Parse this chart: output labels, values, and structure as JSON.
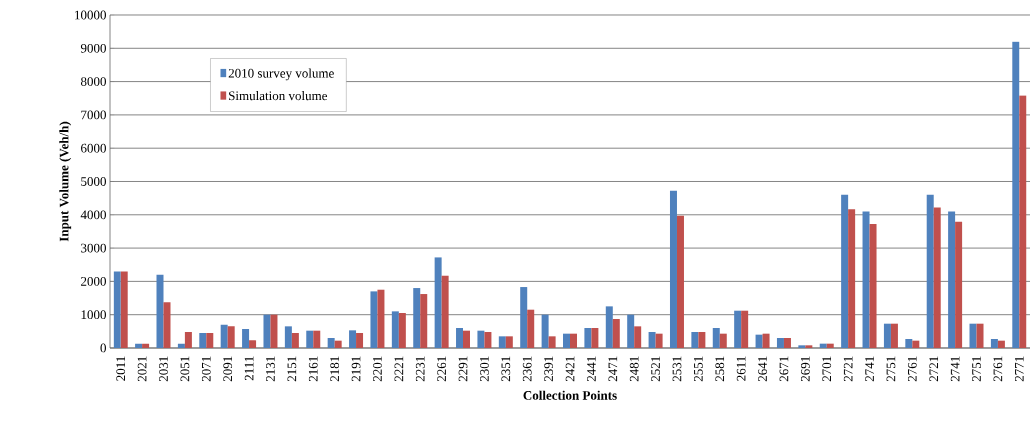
{
  "chart_data": {
    "type": "bar",
    "xlabel": "Collection Points",
    "ylabel": "Input Volume (Veh/h)",
    "categories": [
      "2011",
      "2021",
      "2031",
      "2051",
      "2071",
      "2091",
      "2111",
      "2131",
      "2151",
      "2161",
      "2181",
      "2191",
      "2201",
      "2221",
      "2231",
      "2261",
      "2291",
      "2301",
      "2351",
      "2361",
      "2391",
      "2421",
      "2441",
      "2471",
      "2481",
      "2521",
      "2531",
      "2551",
      "2581",
      "2611",
      "2641",
      "2671",
      "2691",
      "2701",
      "2721",
      "2741",
      "2751",
      "2761",
      "2721",
      "2741",
      "2751",
      "2761",
      "2771"
    ],
    "series": [
      {
        "name": "2010 survey volume",
        "color": "#4f81bd",
        "values": [
          2300,
          130,
          2200,
          130,
          450,
          700,
          570,
          1000,
          650,
          520,
          300,
          530,
          1700,
          1100,
          1800,
          2720,
          600,
          520,
          350,
          1830,
          1000,
          430,
          600,
          1250,
          1000,
          480,
          4720,
          480,
          600,
          1120,
          400,
          300,
          80,
          130,
          4600,
          4100,
          730,
          270,
          4600,
          4100,
          730,
          270,
          9200
        ]
      },
      {
        "name": "Simulation volume",
        "color": "#c0504d",
        "values": [
          2300,
          130,
          1370,
          480,
          450,
          650,
          230,
          1000,
          450,
          520,
          220,
          450,
          1750,
          1050,
          1620,
          2170,
          520,
          480,
          350,
          1150,
          350,
          430,
          600,
          870,
          650,
          430,
          3970,
          480,
          430,
          1120,
          430,
          300,
          80,
          130,
          4170,
          3720,
          730,
          220,
          4220,
          3790,
          730,
          220,
          7580
        ]
      }
    ],
    "ylim": [
      0,
      10000
    ],
    "yticks": [
      0,
      1000,
      2000,
      3000,
      4000,
      5000,
      6000,
      7000,
      8000,
      9000,
      10000
    ],
    "grid": "y",
    "legend": "top left"
  }
}
